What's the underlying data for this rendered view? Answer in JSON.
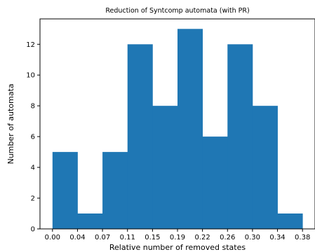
{
  "chart_data": {
    "type": "bar",
    "title": "Reduction of Syntcomp automata (with PR)",
    "xlabel": "Relative number of removed states",
    "ylabel": "Number of automata",
    "bin_edges": [
      0.0,
      0.0375,
      0.075,
      0.1125,
      0.15,
      0.1875,
      0.225,
      0.2625,
      0.3,
      0.3375,
      0.375
    ],
    "values": [
      5,
      1,
      5,
      12,
      8,
      13,
      6,
      12,
      8,
      1
    ],
    "xticks": [
      "0.00",
      "0.04",
      "0.07",
      "0.11",
      "0.15",
      "0.19",
      "0.22",
      "0.26",
      "0.30",
      "0.34",
      "0.38"
    ],
    "yticks": [
      0,
      2,
      4,
      6,
      8,
      10,
      12
    ],
    "xlim": [
      -0.01875,
      0.39375
    ],
    "ylim": [
      0,
      13.65
    ],
    "grid": false,
    "bar_color": "#1f77b4"
  }
}
